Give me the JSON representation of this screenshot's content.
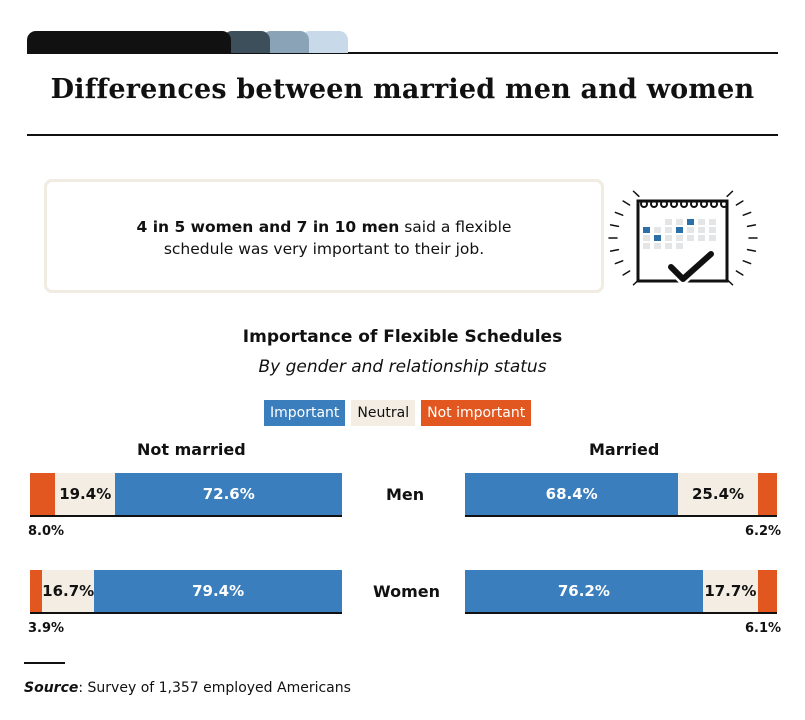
{
  "page": {
    "title": "Differences between married men and women",
    "tab_colors": [
      "#111111",
      "#3e4f5c",
      "#8aa3b6",
      "#c8daea"
    ]
  },
  "callout": {
    "bold_text": "4 in 5 women and 7 in 10 men",
    "rest_line1": " said a flexible",
    "line2": "schedule was very important to their job.",
    "icon": "calendar-check-icon"
  },
  "chart_data": {
    "type": "bar",
    "orientation": "horizontal-stacked",
    "title": "Importance of Flexible Schedules",
    "subtitle": "By gender and relationship status",
    "legend": [
      {
        "name": "Important",
        "color": "#3a7ebd"
      },
      {
        "name": "Neutral",
        "color": "#f3ede3"
      },
      {
        "name": "Not important",
        "color": "#e2571f"
      }
    ],
    "groups": [
      "Not married",
      "Married"
    ],
    "categories": [
      "Men",
      "Women"
    ],
    "panels": [
      {
        "group": "Not married",
        "rows": [
          {
            "category": "Men",
            "not_important": 8.0,
            "neutral": 19.4,
            "important": 72.6,
            "labels": {
              "not_important": "8.0%",
              "neutral": "19.4%",
              "important": "72.6%"
            }
          },
          {
            "category": "Women",
            "not_important": 3.9,
            "neutral": 16.7,
            "important": 79.4,
            "labels": {
              "not_important": "3.9%",
              "neutral": "16.7%",
              "important": "79.4%"
            }
          }
        ]
      },
      {
        "group": "Married",
        "rows": [
          {
            "category": "Men",
            "important": 68.4,
            "neutral": 25.4,
            "not_important": 6.2,
            "labels": {
              "important": "68.4%",
              "neutral": "25.4%",
              "not_important": "6.2%"
            }
          },
          {
            "category": "Women",
            "important": 76.2,
            "neutral": 17.7,
            "not_important": 6.1,
            "labels": {
              "important": "76.2%",
              "neutral": "17.7%",
              "not_important": "6.1%"
            }
          }
        ]
      }
    ],
    "xlim": [
      0,
      100
    ]
  },
  "source": {
    "label": "Source",
    "text": ": Survey of 1,357 employed Americans"
  }
}
